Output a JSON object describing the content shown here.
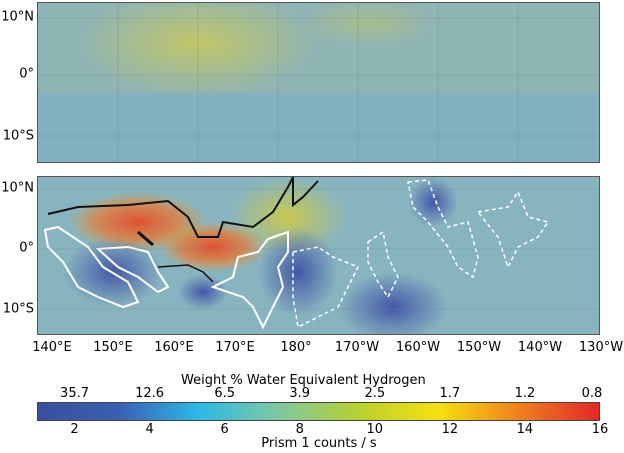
{
  "lat_labels": [
    "10°N",
    "0°",
    "10°S"
  ],
  "lon_labels": [
    "140°E",
    "150°E",
    "160°E",
    "170°E",
    "180°",
    "170°W",
    "160°W",
    "150°W",
    "140°W",
    "130°W"
  ],
  "colorbar": {
    "title_top": "Weight % Water Equivalent Hydrogen",
    "top_ticks": [
      "35.7",
      "12.6",
      "6.5",
      "3.9",
      "2.5",
      "1.7",
      "1.2",
      "0.8"
    ],
    "bottom_ticks": [
      "2",
      "4",
      "6",
      "8",
      "10",
      "12",
      "14",
      "16"
    ],
    "title_bottom": "Prism 1 counts / s",
    "range": [
      1,
      16
    ],
    "colors": [
      "#3a4fa0",
      "#3a5fb0",
      "#2fb8e8",
      "#7ec8a0",
      "#b8d030",
      "#f5e010",
      "#f08020",
      "#e02828"
    ]
  }
}
